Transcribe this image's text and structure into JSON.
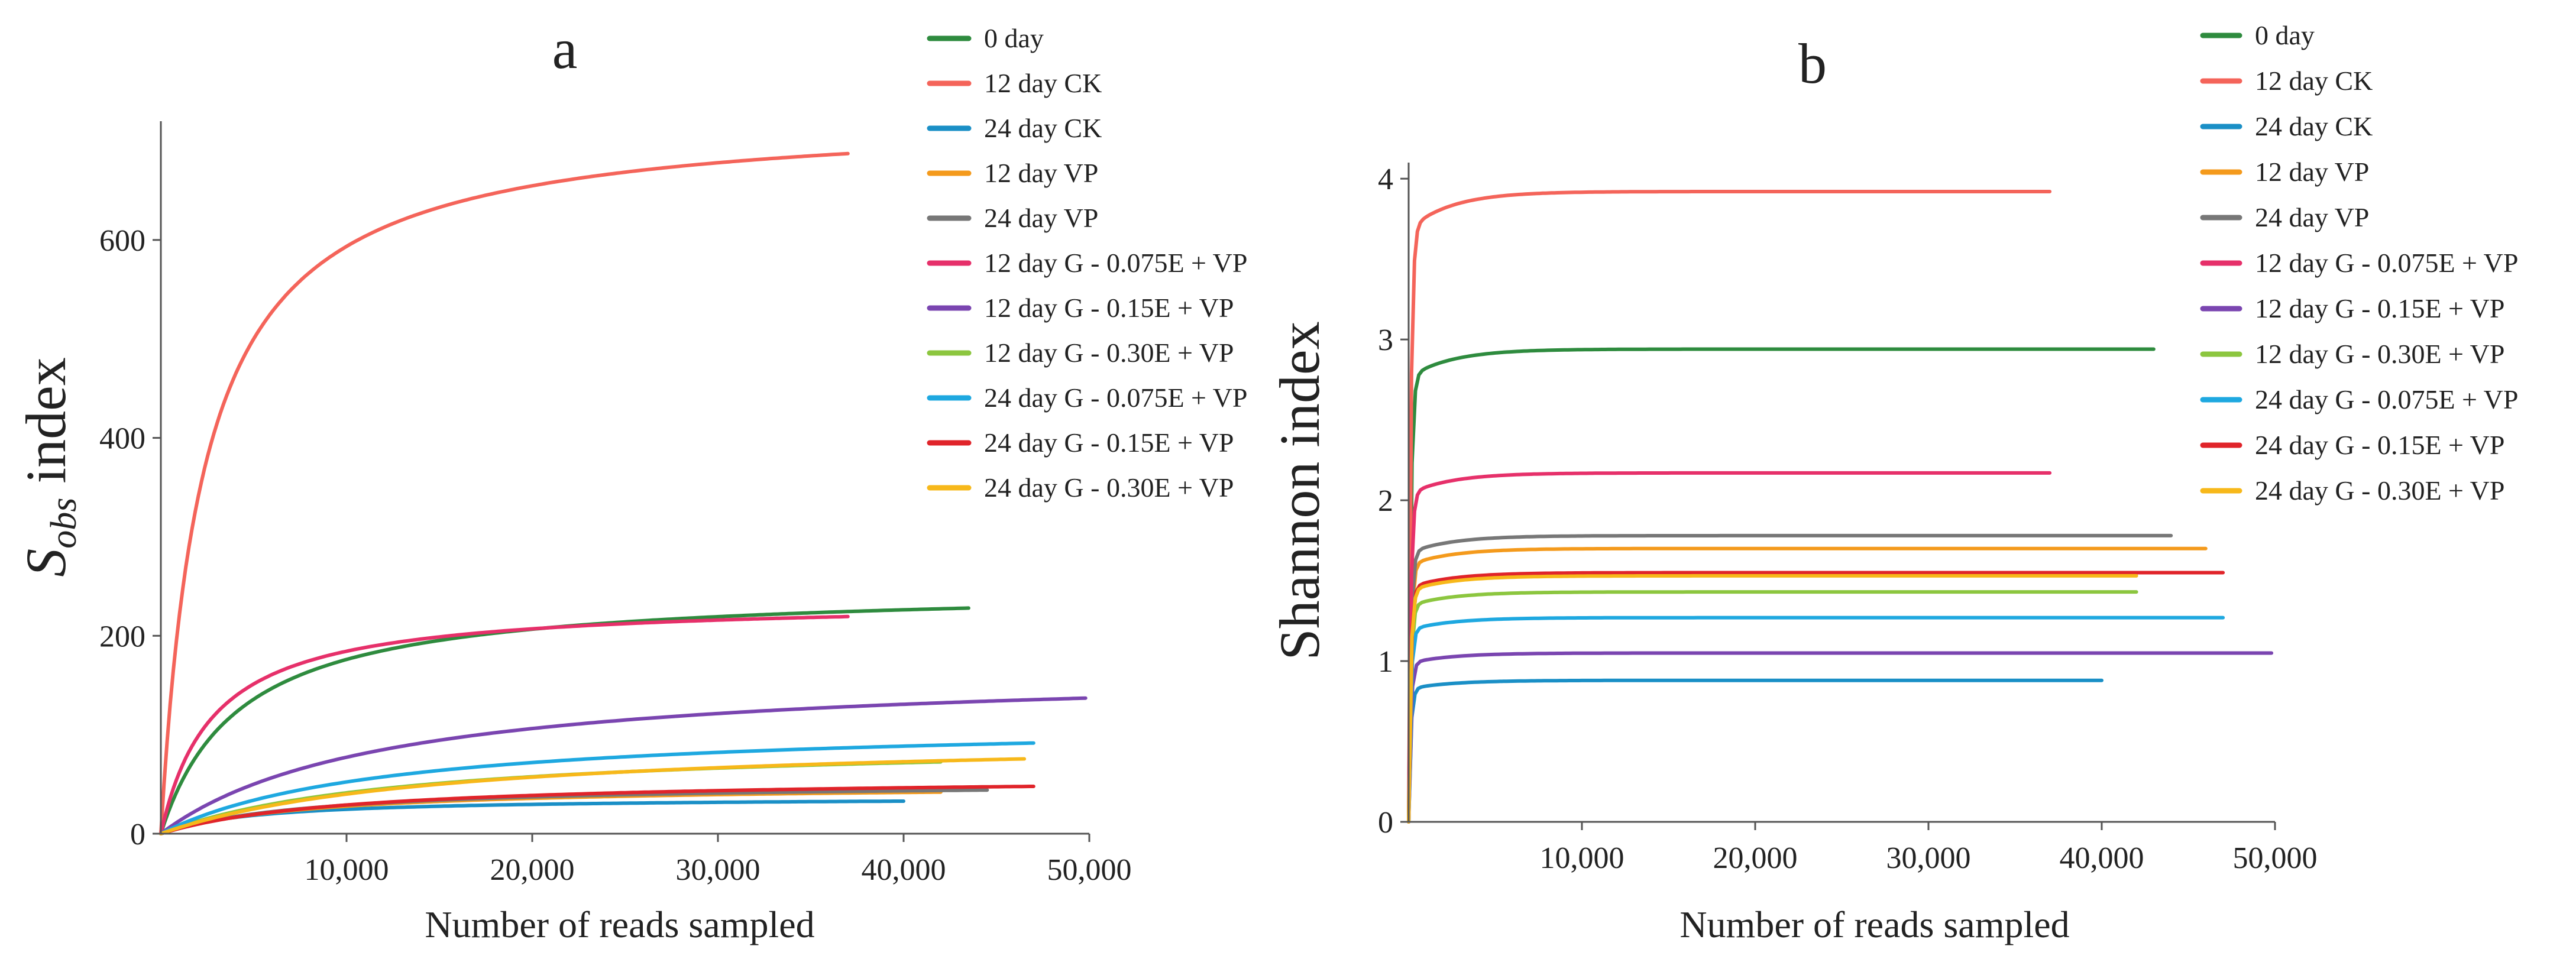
{
  "chart_data": [
    {
      "panel": "a",
      "type": "line",
      "title": "a",
      "xlabel": "Number of reads sampled",
      "ylabel_main": "S",
      "ylabel_sub": "obs",
      "ylabel_rest": " index",
      "xlim": [
        0,
        50000
      ],
      "ylim": [
        0,
        720
      ],
      "xticks": [
        10000,
        20000,
        30000,
        40000,
        50000
      ],
      "xtick_labels": [
        "10,000",
        "20,000",
        "30,000",
        "40,000",
        "50,000"
      ],
      "yticks": [
        0,
        200,
        400,
        600
      ],
      "ytick_labels": [
        "0",
        "200",
        "400",
        "600"
      ],
      "legend_position": "top-right",
      "series": [
        {
          "name": "0 day",
          "color": "#2e8b3e",
          "max_x": 43500,
          "plateau": 250,
          "half": 4200
        },
        {
          "name": "12 day CK",
          "color": "#f4645a",
          "max_x": 37000,
          "plateau": 730,
          "half": 2300
        },
        {
          "name": "24 day CK",
          "color": "#1a8fc6",
          "max_x": 40000,
          "plateau": 37,
          "half": 5000
        },
        {
          "name": "12 day VP",
          "color": "#f49a1c",
          "max_x": 42000,
          "plateau": 50,
          "half": 8000
        },
        {
          "name": "24 day VP",
          "color": "#777777",
          "max_x": 44500,
          "plateau": 52,
          "half": 8000
        },
        {
          "name": "12 day G - 0.075E + VP",
          "color": "#e6306a",
          "max_x": 37000,
          "plateau": 236,
          "half": 2800
        },
        {
          "name": "12 day G - 0.15E + VP",
          "color": "#7a45b0",
          "max_x": 49800,
          "plateau": 170,
          "half": 12000
        },
        {
          "name": "12 day G - 0.30E + VP",
          "color": "#8cc63f",
          "max_x": 42000,
          "plateau": 95,
          "half": 13000
        },
        {
          "name": "24 day G - 0.075E + VP",
          "color": "#1ea8e0",
          "max_x": 47000,
          "plateau": 115,
          "half": 12000
        },
        {
          "name": "24 day G - 0.15E + VP",
          "color": "#e0242a",
          "max_x": 47000,
          "plateau": 58,
          "half": 10000
        },
        {
          "name": "24 day G - 0.30E + VP",
          "color": "#f7b81a",
          "max_x": 46500,
          "plateau": 100,
          "half": 15000
        }
      ]
    },
    {
      "panel": "b",
      "type": "line",
      "title": "b",
      "xlabel": "Number of reads sampled",
      "ylabel": "Shannon index",
      "xlim": [
        0,
        50000
      ],
      "ylim": [
        0,
        4.1
      ],
      "xticks": [
        10000,
        20000,
        30000,
        40000,
        50000
      ],
      "xtick_labels": [
        "10,000",
        "20,000",
        "30,000",
        "40,000",
        "50,000"
      ],
      "yticks": [
        0,
        1,
        2,
        3,
        4
      ],
      "ytick_labels": [
        "0",
        "1",
        "2",
        "3",
        "4"
      ],
      "legend_position": "top-right",
      "series": [
        {
          "name": "0 day",
          "color": "#2e8b3e",
          "max_x": 43000,
          "plateau": 2.94
        },
        {
          "name": "12 day CK",
          "color": "#f4645a",
          "max_x": 37000,
          "plateau": 3.92
        },
        {
          "name": "24 day CK",
          "color": "#1a8fc6",
          "max_x": 40000,
          "plateau": 0.88
        },
        {
          "name": "12 day VP",
          "color": "#f49a1c",
          "max_x": 46000,
          "plateau": 1.7
        },
        {
          "name": "24 day VP",
          "color": "#777777",
          "max_x": 44000,
          "plateau": 1.78
        },
        {
          "name": "12 day G - 0.075E + VP",
          "color": "#e6306a",
          "max_x": 37000,
          "plateau": 2.17
        },
        {
          "name": "12 day G - 0.15E + VP",
          "color": "#7a45b0",
          "max_x": 49800,
          "plateau": 1.05
        },
        {
          "name": "12 day G - 0.30E + VP",
          "color": "#8cc63f",
          "max_x": 42000,
          "plateau": 1.43
        },
        {
          "name": "24 day G - 0.075E + VP",
          "color": "#1ea8e0",
          "max_x": 47000,
          "plateau": 1.27
        },
        {
          "name": "24 day G - 0.15E + VP",
          "color": "#e0242a",
          "max_x": 47000,
          "plateau": 1.55
        },
        {
          "name": "24 day G - 0.30E + VP",
          "color": "#f7b81a",
          "max_x": 42000,
          "plateau": 1.53
        }
      ]
    }
  ]
}
